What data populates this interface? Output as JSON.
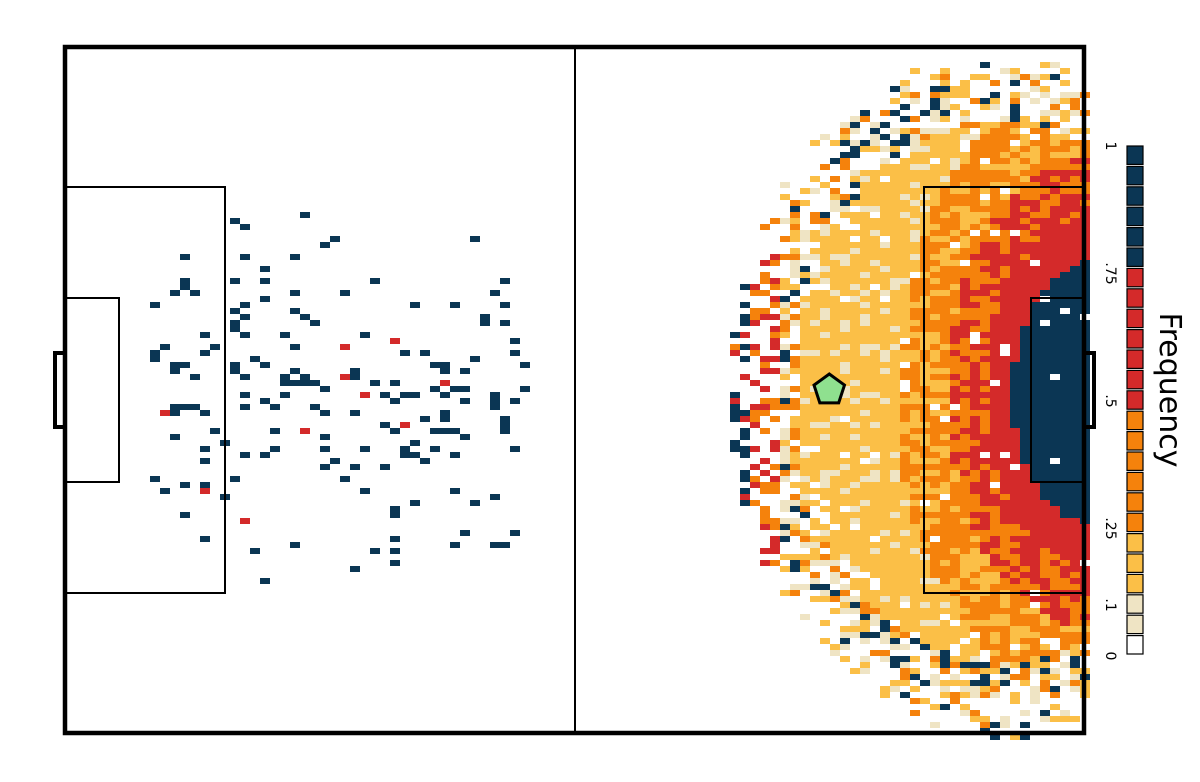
{
  "chart_data": {
    "type": "heatmap",
    "title": "",
    "subtitle": "",
    "grid": false,
    "legend": {
      "title": "Frequency",
      "placement": "right",
      "tick_labels": [
        "1",
        ".75",
        ".5",
        ".25",
        ".1",
        "0"
      ],
      "tick_values": [
        1,
        0.75,
        0.5,
        0.25,
        0.1,
        0
      ],
      "color_steps": [
        {
          "from": 0.0,
          "to": 0.05,
          "color": "#ffffff"
        },
        {
          "from": 0.05,
          "to": 0.1,
          "color": "#efe4c4"
        },
        {
          "from": 0.1,
          "to": 0.25,
          "color": "#fbbf47"
        },
        {
          "from": 0.25,
          "to": 0.5,
          "color": "#f5820c"
        },
        {
          "from": 0.5,
          "to": 0.75,
          "color": "#d42a2a"
        },
        {
          "from": 0.75,
          "to": 1.0,
          "color": "#0b3654"
        }
      ]
    },
    "pitch": {
      "line_color": "#000000",
      "background": "#ffffff"
    },
    "highlight_marker": {
      "shape": "pentagon",
      "color": "#8fe08f",
      "x": 75,
      "y": 50
    },
    "regions": [
      {
        "label": "right-half core",
        "level": 0.18,
        "note": "wide light-orange area, about x 66-86"
      },
      {
        "label": "right-half ring",
        "level": 0.35,
        "note": "orange band around the core"
      },
      {
        "label": "penalty-box edge",
        "level": 0.6,
        "note": "red band about x 84-90"
      },
      {
        "label": "goal area",
        "level": 0.95,
        "note": "dark navy near the right goal"
      },
      {
        "label": "left half",
        "level": 0.9,
        "note": "sparse scattered navy cells, about x 13-46"
      }
    ]
  },
  "colors": {
    "navy": "#0b3654",
    "red": "#d42a2a",
    "orange": "#f5820c",
    "light_orange": "#fbbf47",
    "cream": "#efe4c4",
    "marker": "#8fe08f"
  }
}
